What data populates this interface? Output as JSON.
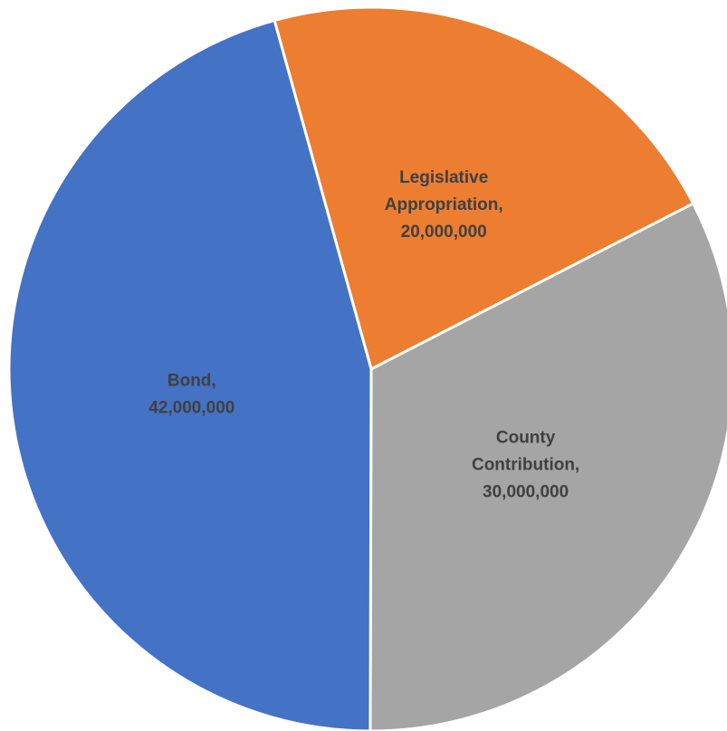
{
  "chart_data": {
    "type": "pie",
    "start_angle_deg": -15.5,
    "direction": "clockwise",
    "slices": [
      {
        "category": "Legislative Appropriation",
        "value": 20000000,
        "value_label": "20,000,000",
        "color": "#ED7D31",
        "label_lines": [
          "Legislative",
          "Appropriation,",
          "20,000,000"
        ]
      },
      {
        "category": "County Contribution",
        "value": 30000000,
        "value_label": "30,000,000",
        "color": "#A5A5A5",
        "label_lines": [
          "County",
          "Contribution,",
          "30,000,000"
        ]
      },
      {
        "category": "Bond",
        "value": 42000000,
        "value_label": "42,000,000",
        "color": "#4472C4",
        "label_lines": [
          "Bond,",
          "42,000,000"
        ]
      }
    ]
  }
}
